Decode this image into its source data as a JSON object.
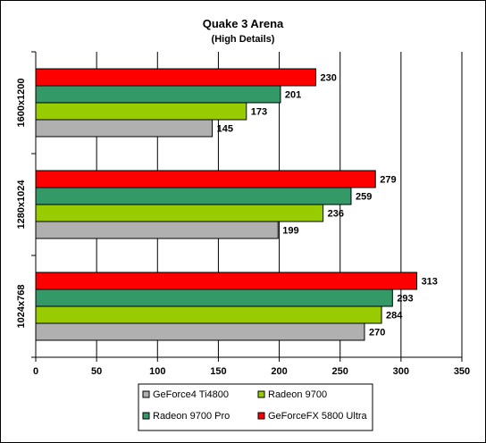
{
  "chart_data": {
    "type": "bar",
    "orientation": "horizontal",
    "title": "Quake 3 Arena",
    "subtitle": "(High Details)",
    "categories": [
      "1600x1200",
      "1280x1024",
      "1024x768"
    ],
    "series": [
      {
        "name": "GeForce4 Ti4800",
        "color": "#b0b0b0",
        "values": [
          145,
          199,
          270
        ]
      },
      {
        "name": "Radeon 9700",
        "color": "#99cc00",
        "values": [
          173,
          236,
          284
        ]
      },
      {
        "name": "Radeon 9700 Pro",
        "color": "#339966",
        "values": [
          201,
          259,
          293
        ]
      },
      {
        "name": "GeForceFX 5800 Ultra",
        "color": "#ff0000",
        "values": [
          230,
          279,
          313
        ]
      }
    ],
    "xlim": [
      0,
      350
    ],
    "xticks": [
      0,
      50,
      100,
      150,
      200,
      250,
      300,
      350
    ],
    "grid": true,
    "legend_position": "bottom"
  },
  "colors": {
    "plot_background": "#ffffff",
    "gridline": "#000000"
  }
}
